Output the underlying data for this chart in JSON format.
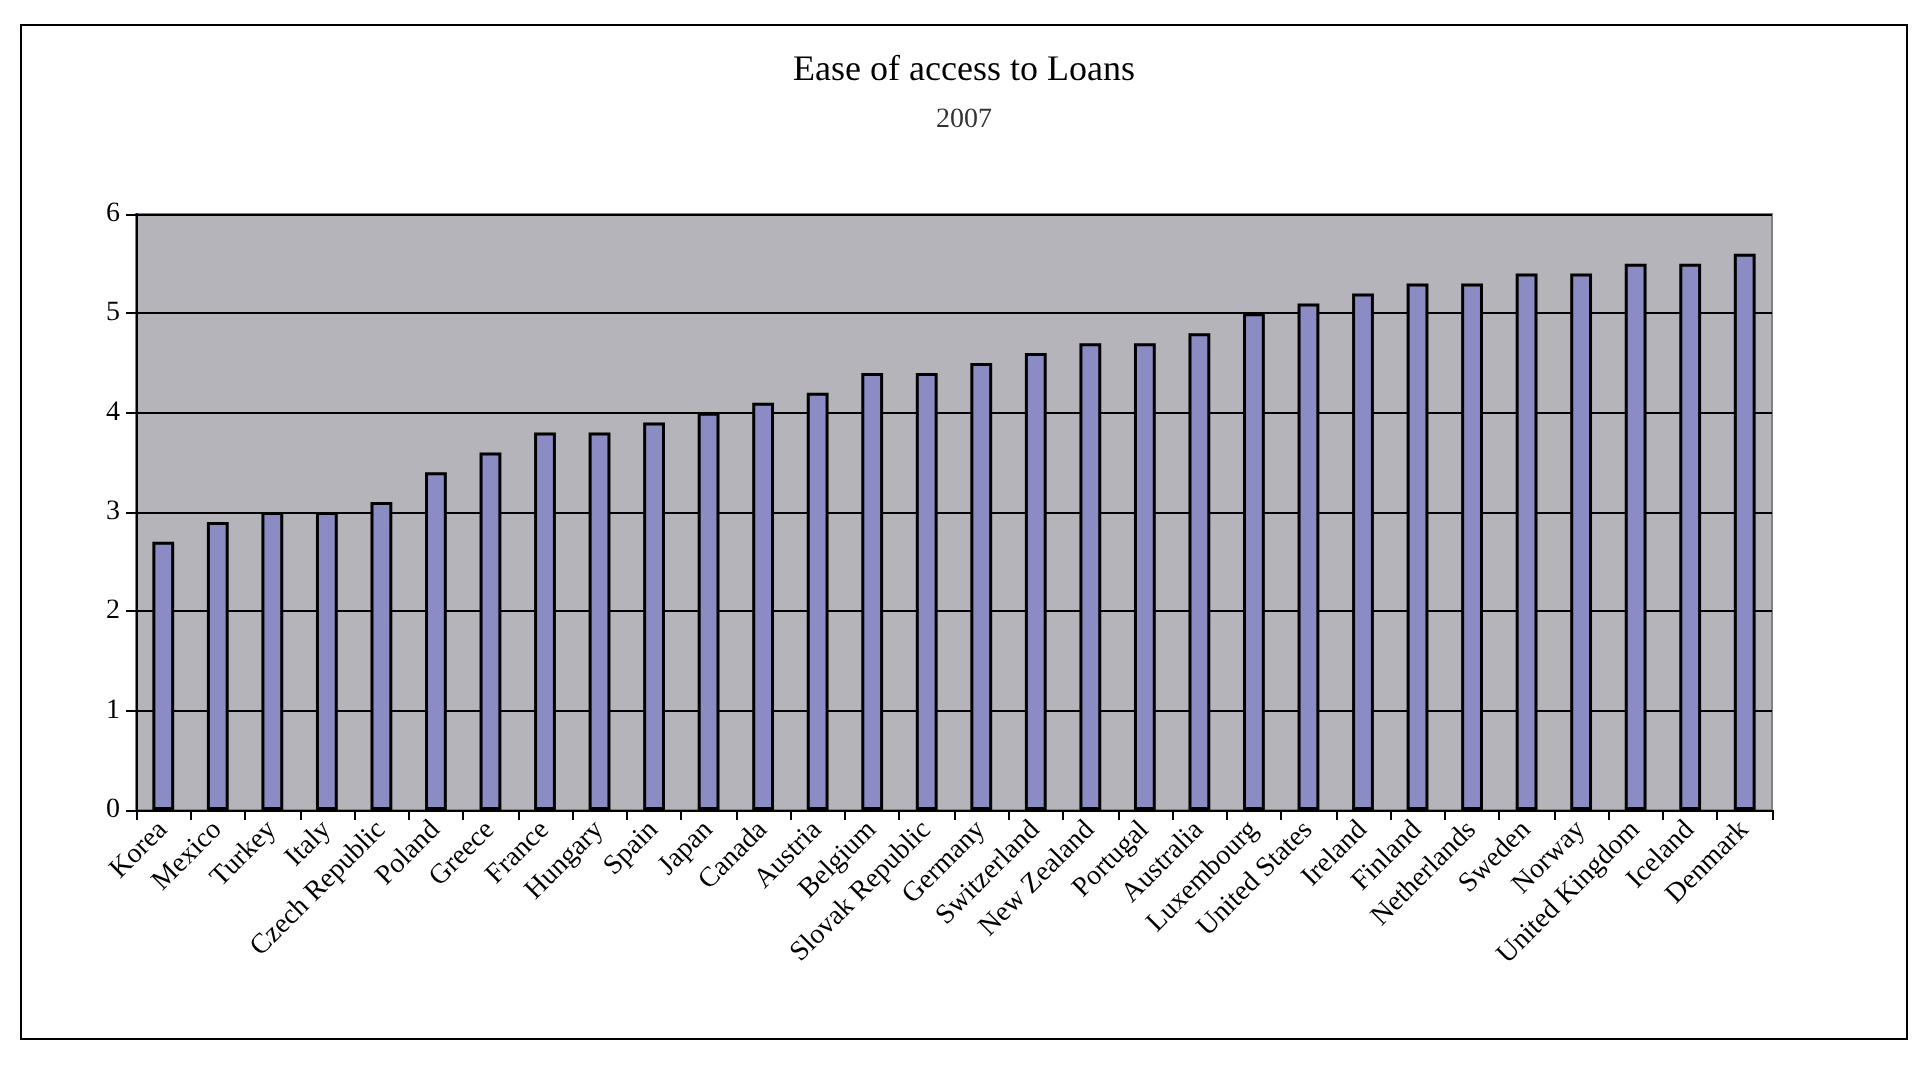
{
  "chart_data": {
    "type": "bar",
    "title": "Ease of access to Loans",
    "subtitle": "2007",
    "categories": [
      "Korea",
      "Mexico",
      "Turkey",
      "Italy",
      "Czech Republic",
      "Poland",
      "Greece",
      "France",
      "Hungary",
      "Spain",
      "Japan",
      "Canada",
      "Austria",
      "Belgium",
      "Slovak Republic",
      "Germany",
      "Switzerland",
      "New Zealand",
      "Portugal",
      "Australia",
      "Luxembourg",
      "United States",
      "Ireland",
      "Finland",
      "Netherlands",
      "Sweden",
      "Norway",
      "United Kingdom",
      "Iceland",
      "Denmark"
    ],
    "values": [
      2.7,
      2.9,
      3.0,
      3.0,
      3.1,
      3.4,
      3.6,
      3.8,
      3.8,
      3.9,
      4.0,
      4.1,
      4.2,
      4.4,
      4.4,
      4.5,
      4.6,
      4.7,
      4.7,
      4.8,
      5.0,
      5.1,
      5.2,
      5.3,
      5.3,
      5.4,
      5.4,
      5.5,
      5.5,
      5.6
    ],
    "color": "#8c8cc4",
    "ylim": [
      0,
      6
    ],
    "yticks": [
      0,
      1,
      2,
      3,
      4,
      5,
      6
    ],
    "grid": "y"
  }
}
